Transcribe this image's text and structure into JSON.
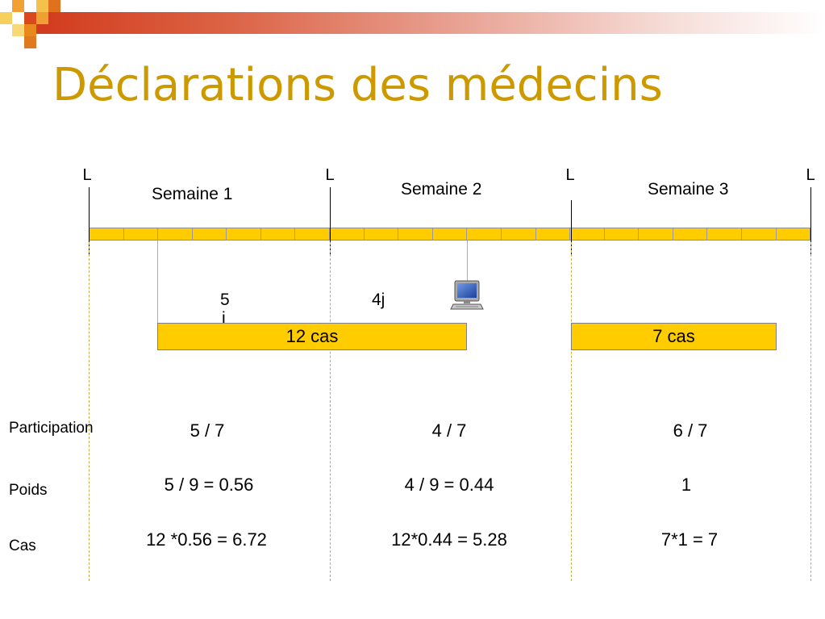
{
  "slide": {
    "title": "Déclarations des médecins"
  },
  "timeline": {
    "markers": [
      "L",
      "L",
      "L",
      "L"
    ],
    "weeks": [
      "Semaine 1",
      "Semaine 2",
      "Semaine 3"
    ],
    "day_count": 21
  },
  "annotations": {
    "period1_line1": "5",
    "period1_line2": "j",
    "period2": "4j"
  },
  "case_boxes": [
    "12 cas",
    "7 cas"
  ],
  "table": {
    "rows": [
      {
        "label": "Participation",
        "values": [
          "5 / 7",
          "4 / 7",
          "6 / 7"
        ]
      },
      {
        "label": "Poids",
        "values": [
          "5 / 9 = 0.56",
          "4 / 9 = 0.44",
          "1"
        ]
      },
      {
        "label": "Cas",
        "values": [
          "12 *0.56 = 6.72",
          "12*0.44 = 5.28",
          "7*1 = 7"
        ]
      }
    ]
  },
  "colors": {
    "title": "#CC9900",
    "bar_fill": "#FFCC00",
    "dashed_lines": "#BDB24E",
    "header_gradient_start": "#D23A1C"
  },
  "icons": {
    "computer": "computer-icon"
  }
}
